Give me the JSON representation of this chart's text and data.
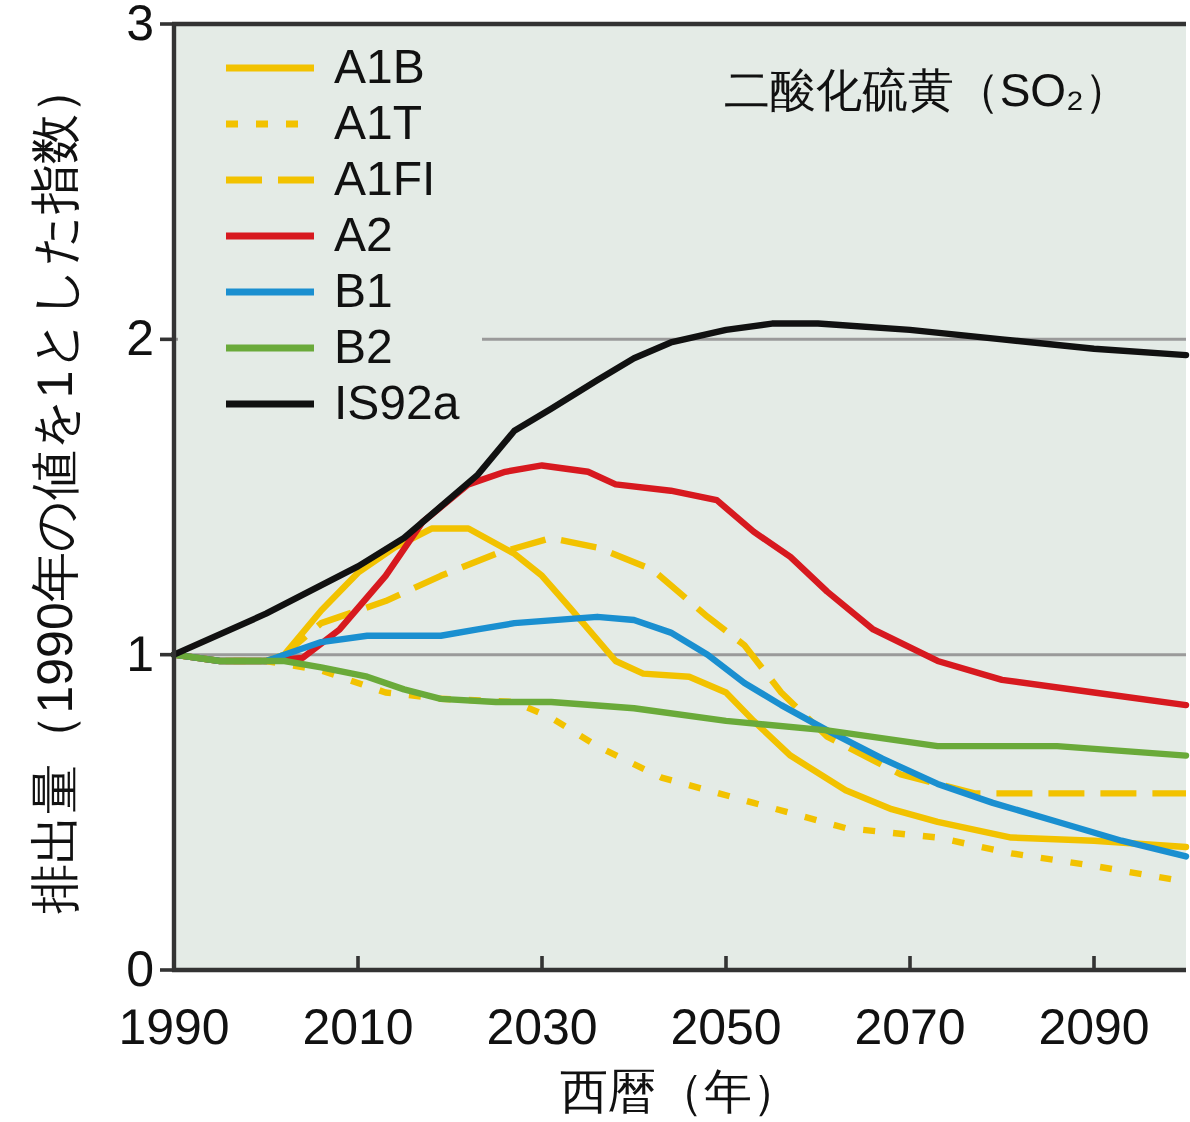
{
  "chart_data": {
    "type": "line",
    "title": "二酸化硫黄（SO₂）",
    "xlabel": "西暦（年）",
    "ylabel": "排出量（1990年の値を1とした指数）",
    "xlim": [
      1990,
      2100
    ],
    "xticks": [
      1990,
      2010,
      2030,
      2050,
      2070,
      2090
    ],
    "ylim": [
      0,
      3
    ],
    "yticks": [
      0,
      1,
      2,
      3
    ],
    "grid": "y",
    "legend": "top left",
    "series": [
      {
        "name": "A1B",
        "color": "#f2c200",
        "line_style": "solid",
        "x": [
          1990,
          1995,
          2000,
          2002,
          2006,
          2010,
          2014,
          2018,
          2022,
          2027,
          2030,
          2033,
          2038,
          2041,
          2046,
          2050,
          2053,
          2057,
          2063,
          2068,
          2073,
          2081,
          2090,
          2100
        ],
        "values": [
          1.0,
          0.98,
          0.98,
          1.0,
          1.14,
          1.26,
          1.34,
          1.4,
          1.4,
          1.32,
          1.25,
          1.15,
          0.98,
          0.94,
          0.93,
          0.88,
          0.79,
          0.68,
          0.57,
          0.51,
          0.47,
          0.42,
          0.41,
          0.39
        ]
      },
      {
        "name": "A1T",
        "color": "#f2c200",
        "line_style": "dotted",
        "x": [
          1990,
          1995,
          2000,
          2006,
          2013,
          2019,
          2027,
          2031,
          2036,
          2043,
          2053,
          2063,
          2073,
          2081,
          2090,
          2100
        ],
        "values": [
          1.0,
          0.98,
          0.98,
          0.95,
          0.88,
          0.86,
          0.85,
          0.8,
          0.71,
          0.61,
          0.53,
          0.45,
          0.42,
          0.37,
          0.33,
          0.28
        ]
      },
      {
        "name": "A1FI",
        "color": "#f2c200",
        "line_style": "dashed",
        "x": [
          1990,
          1995,
          2000,
          2002,
          2006,
          2013,
          2019,
          2025,
          2031,
          2036,
          2042,
          2048,
          2052,
          2056,
          2061,
          2069,
          2077,
          2088,
          2100
        ],
        "values": [
          1.0,
          0.98,
          0.98,
          1.0,
          1.1,
          1.17,
          1.25,
          1.32,
          1.37,
          1.34,
          1.27,
          1.12,
          1.03,
          0.88,
          0.74,
          0.62,
          0.56,
          0.56,
          0.56
        ]
      },
      {
        "name": "A2",
        "color": "#d7191f",
        "line_style": "solid",
        "x": [
          1990,
          1995,
          2000,
          2004,
          2008,
          2013,
          2017,
          2022,
          2026,
          2030,
          2035,
          2038,
          2044,
          2049,
          2053,
          2057,
          2061,
          2066,
          2073,
          2080,
          2090,
          2100
        ],
        "values": [
          1.0,
          0.98,
          0.98,
          0.99,
          1.08,
          1.25,
          1.42,
          1.54,
          1.58,
          1.6,
          1.58,
          1.54,
          1.52,
          1.49,
          1.39,
          1.31,
          1.2,
          1.08,
          0.98,
          0.92,
          0.88,
          0.84
        ]
      },
      {
        "name": "B1",
        "color": "#1a8fd0",
        "line_style": "solid",
        "x": [
          1990,
          1995,
          2000,
          2002,
          2006,
          2011,
          2019,
          2023,
          2027,
          2036,
          2040,
          2044,
          2048,
          2052,
          2056,
          2061,
          2067,
          2073,
          2079,
          2086,
          2093,
          2100
        ],
        "values": [
          1.0,
          0.98,
          0.98,
          1.0,
          1.04,
          1.06,
          1.06,
          1.08,
          1.1,
          1.12,
          1.11,
          1.07,
          1.0,
          0.91,
          0.84,
          0.76,
          0.67,
          0.59,
          0.53,
          0.47,
          0.41,
          0.36
        ]
      },
      {
        "name": "B2",
        "color": "#6aaa3a",
        "line_style": "solid",
        "x": [
          1990,
          1995,
          2002,
          2006,
          2011,
          2015,
          2019,
          2025,
          2031,
          2040,
          2050,
          2061,
          2073,
          2086,
          2100
        ],
        "values": [
          1.0,
          0.98,
          0.98,
          0.96,
          0.93,
          0.89,
          0.86,
          0.85,
          0.85,
          0.83,
          0.79,
          0.76,
          0.71,
          0.71,
          0.68
        ]
      },
      {
        "name": "IS92a",
        "color": "#111111",
        "line_style": "solid",
        "x": [
          1990,
          2000,
          2010,
          2015,
          2019,
          2023,
          2027,
          2031,
          2036,
          2040,
          2044,
          2050,
          2055,
          2060,
          2070,
          2080,
          2090,
          2100
        ],
        "values": [
          1.0,
          1.13,
          1.28,
          1.37,
          1.47,
          1.57,
          1.71,
          1.78,
          1.87,
          1.94,
          1.99,
          2.03,
          2.05,
          2.05,
          2.03,
          2.0,
          1.97,
          1.95
        ]
      }
    ]
  }
}
